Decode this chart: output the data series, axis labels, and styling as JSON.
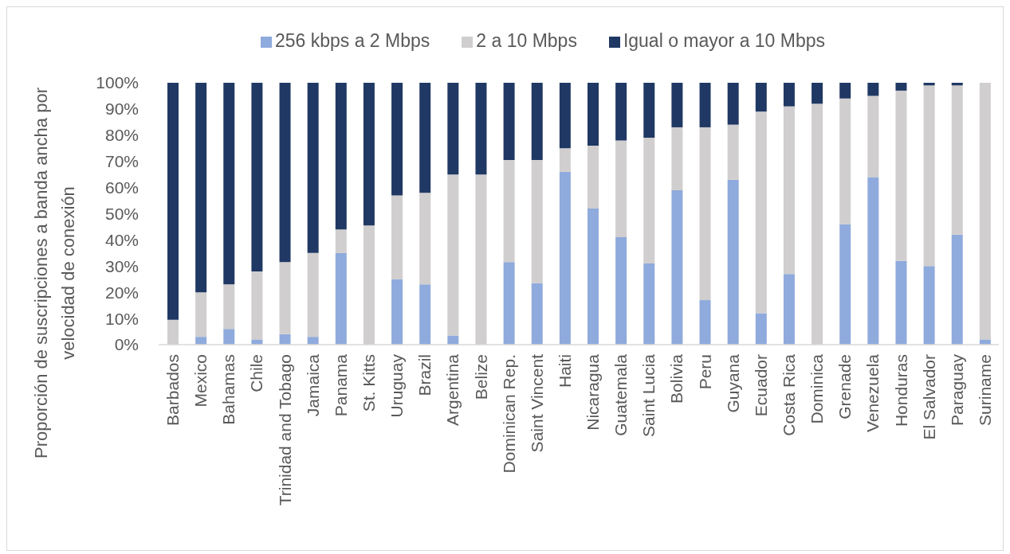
{
  "chart_data": {
    "type": "bar",
    "stacked": true,
    "ylabel": "Proporción de suscripciones a banda ancha por velocidad de conexión",
    "categories": [
      "Barbados",
      "Mexico",
      "Bahamas",
      "Chile",
      "Trinidad and Tobago",
      "Jamaica",
      "Panama",
      "St. Kitts",
      "Uruguay",
      "Brazil",
      "Argentina",
      "Belize",
      "Dominican Rep.",
      "Saint Vincent",
      "Haiti",
      "Nicaragua",
      "Guatemala",
      "Saint Lucia",
      "Bolivia",
      "Peru",
      "Guyana",
      "Ecuador",
      "Costa Rica",
      "Dominica",
      "Grenade",
      "Venezuela",
      "Honduras",
      "El Salvador",
      "Paraguay",
      "Suriname"
    ],
    "series": [
      {
        "name": "256 kbps a 2 Mbps",
        "color": "#8faadc",
        "values": [
          0,
          3,
          6,
          2,
          4,
          3,
          35,
          0,
          25,
          23,
          3.5,
          0,
          31.5,
          23.5,
          66,
          52,
          41,
          31,
          59,
          17,
          63,
          12,
          27,
          0,
          46,
          64,
          32,
          30,
          42,
          2
        ]
      },
      {
        "name": "2 a 10 Mbps",
        "color": "#d0cece",
        "values": [
          9.5,
          17,
          17,
          26,
          27.5,
          32,
          9,
          45.5,
          32,
          35,
          61.5,
          65,
          39,
          47,
          9,
          24,
          37,
          48,
          24,
          66,
          21,
          77,
          64,
          92,
          48,
          31,
          65,
          69,
          57,
          98
        ]
      },
      {
        "name": "Igual o mayor a 10 Mbps",
        "color": "#203864",
        "values": [
          90.5,
          80,
          77,
          72,
          68.5,
          65,
          56,
          54.5,
          43,
          42,
          35,
          35,
          29.5,
          29.5,
          25,
          24,
          22,
          21,
          17,
          17,
          16,
          11,
          9,
          8,
          6,
          5,
          3,
          1,
          1,
          0
        ]
      }
    ],
    "ylim": [
      0,
      100
    ],
    "yticks": [
      {
        "value": 0,
        "label": "0%"
      },
      {
        "value": 10,
        "label": "10%"
      },
      {
        "value": 20,
        "label": "20%"
      },
      {
        "value": 30,
        "label": "30%"
      },
      {
        "value": 40,
        "label": "40%"
      },
      {
        "value": 50,
        "label": "50%"
      },
      {
        "value": 60,
        "label": "60%"
      },
      {
        "value": 70,
        "label": "70%"
      },
      {
        "value": 80,
        "label": "80%"
      },
      {
        "value": 90,
        "label": "90%"
      },
      {
        "value": 100,
        "label": "100%"
      }
    ],
    "legend": "top"
  }
}
